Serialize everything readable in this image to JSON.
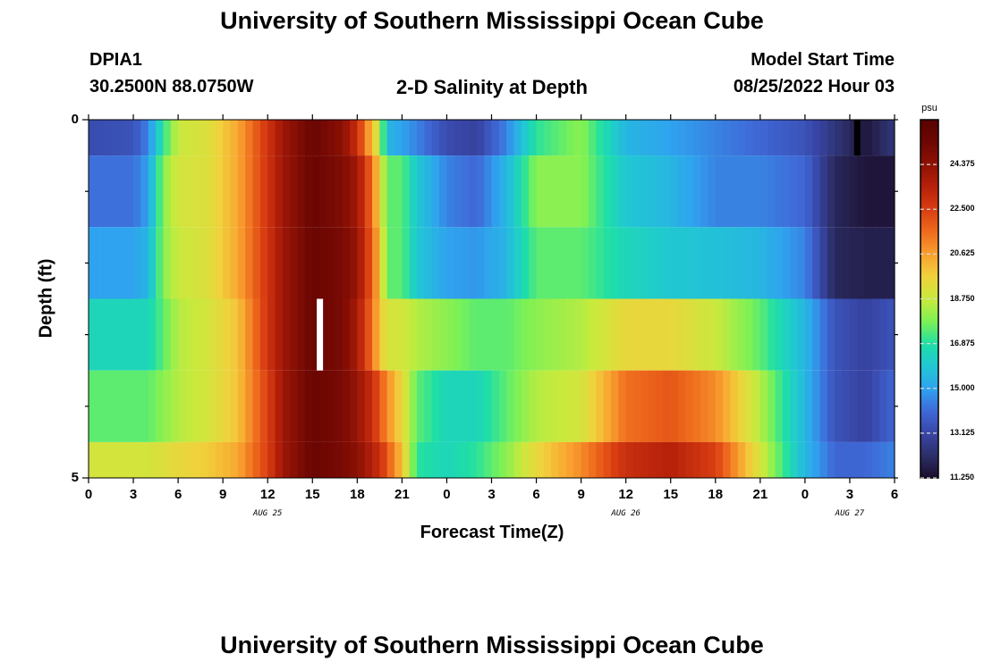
{
  "header": {
    "title": "University of Southern Mississippi Ocean Cube",
    "station": "DPIA1",
    "coords": "30.2500N  88.0750W",
    "plot_title": "2-D Salinity at Depth",
    "model_label": "Model Start Time",
    "model_time": "08/25/2022 Hour 03"
  },
  "footer": {
    "title": "University of Southern Mississippi Ocean Cube"
  },
  "chart_data": {
    "type": "heatmap",
    "xlabel": "Forecast Time(Z)",
    "ylabel": "Depth (ft)",
    "x_tick_labels": [
      "0",
      "3",
      "6",
      "9",
      "12",
      "15",
      "18",
      "21",
      "0",
      "3",
      "6",
      "9",
      "12",
      "15",
      "18",
      "21",
      "0",
      "3",
      "6"
    ],
    "date_labels": [
      {
        "label": "AUG 25",
        "hour": 12
      },
      {
        "label": "AUG 26",
        "hour": 36
      },
      {
        "label": "AUG 27",
        "hour": 51
      }
    ],
    "x_range_hours": [
      0,
      54
    ],
    "y_tick_labels": [
      "0",
      "5"
    ],
    "y_range": [
      0,
      5
    ],
    "depth_bands": [
      {
        "depth_start": 0.0,
        "depth_end": 0.5
      },
      {
        "depth_start": 0.5,
        "depth_end": 1.5
      },
      {
        "depth_start": 1.5,
        "depth_end": 2.5
      },
      {
        "depth_start": 2.5,
        "depth_end": 3.5
      },
      {
        "depth_start": 3.5,
        "depth_end": 4.5
      },
      {
        "depth_start": 4.5,
        "depth_end": 5.0
      }
    ],
    "keyframe_hours": [
      0,
      3,
      4,
      5,
      6,
      8,
      10,
      12,
      13,
      15,
      17,
      18,
      19,
      19.5,
      20,
      21,
      22,
      24,
      26,
      28,
      30,
      33,
      36,
      39,
      42,
      45,
      48,
      50,
      52,
      54
    ],
    "values": [
      [
        13.3,
        13.5,
        14.5,
        17.0,
        18.8,
        19.2,
        20.5,
        22.8,
        24.0,
        25.5,
        24.5,
        23.0,
        20.0,
        18.8,
        15.5,
        15.0,
        14.5,
        13.3,
        13.0,
        14.5,
        17.0,
        18.0,
        15.5,
        15.0,
        14.5,
        14.0,
        13.5,
        12.5,
        11.5,
        12.5
      ],
      [
        14.2,
        14.2,
        15.0,
        18.0,
        19.0,
        19.2,
        20.5,
        22.8,
        24.0,
        25.5,
        24.8,
        24.0,
        21.5,
        19.5,
        17.5,
        17.5,
        16.0,
        14.5,
        14.0,
        15.5,
        18.0,
        18.0,
        16.0,
        15.5,
        14.5,
        14.5,
        14.0,
        12.0,
        11.5,
        11.5
      ],
      [
        15.0,
        15.0,
        15.5,
        18.0,
        18.8,
        19.2,
        20.5,
        22.8,
        24.0,
        25.5,
        25.0,
        24.2,
        21.8,
        20.0,
        17.5,
        17.5,
        16.0,
        15.0,
        14.8,
        15.5,
        17.5,
        17.5,
        16.5,
        16.0,
        15.8,
        15.5,
        14.5,
        12.0,
        11.8,
        11.8
      ],
      [
        16.5,
        16.5,
        16.5,
        17.5,
        18.5,
        19.0,
        20.0,
        22.8,
        24.0,
        25.5,
        25.0,
        23.8,
        21.5,
        20.0,
        19.0,
        19.0,
        18.5,
        18.0,
        17.5,
        17.5,
        18.0,
        18.5,
        19.5,
        19.5,
        18.8,
        17.5,
        15.5,
        13.5,
        13.0,
        13.5
      ],
      [
        17.5,
        17.5,
        17.5,
        18.0,
        18.5,
        19.0,
        20.0,
        22.5,
        24.0,
        25.5,
        25.0,
        24.2,
        23.0,
        22.0,
        21.0,
        19.5,
        17.5,
        16.5,
        16.5,
        17.5,
        18.5,
        19.0,
        21.5,
        22.0,
        21.0,
        18.5,
        15.5,
        13.5,
        13.0,
        14.0
      ],
      [
        19.0,
        19.0,
        19.0,
        19.2,
        19.5,
        19.8,
        20.5,
        22.5,
        24.0,
        25.5,
        25.0,
        24.5,
        23.5,
        23.0,
        22.0,
        20.0,
        17.0,
        16.5,
        17.0,
        18.0,
        19.5,
        21.0,
        23.0,
        23.5,
        22.5,
        19.0,
        15.5,
        14.0,
        14.0,
        14.5
      ]
    ],
    "missing_markers": [
      {
        "hour": 15.5,
        "depth_start": 2.5,
        "depth_end": 3.5,
        "color": "#ffffff"
      },
      {
        "hour": 51.5,
        "depth_start": 0.0,
        "depth_end": 0.5,
        "color": "#000000"
      }
    ],
    "colorbar": {
      "unit": "psu",
      "min": 11.25,
      "max": 26.25,
      "tick_values": [
        11.25,
        13.125,
        15.0,
        16.875,
        18.75,
        20.625,
        22.5,
        24.375
      ],
      "tick_labels": [
        "11.250",
        "13.125",
        "15.000",
        "16.875",
        "18.750",
        "20.625",
        "22.500",
        "24.375"
      ],
      "color_stops": [
        {
          "value": 11.25,
          "color": "#1a0c2a"
        },
        {
          "value": 12.2,
          "color": "#2c2f68"
        },
        {
          "value": 13.125,
          "color": "#3845a5"
        },
        {
          "value": 14.1,
          "color": "#3f6ad8"
        },
        {
          "value": 15.0,
          "color": "#2fa3ef"
        },
        {
          "value": 16.0,
          "color": "#20c8d2"
        },
        {
          "value": 16.875,
          "color": "#1fdfa6"
        },
        {
          "value": 17.8,
          "color": "#7bf156"
        },
        {
          "value": 18.75,
          "color": "#c8ea3d"
        },
        {
          "value": 19.7,
          "color": "#f0d23c"
        },
        {
          "value": 20.625,
          "color": "#f9a12f"
        },
        {
          "value": 21.6,
          "color": "#ee6a1d"
        },
        {
          "value": 22.5,
          "color": "#d93e12"
        },
        {
          "value": 23.5,
          "color": "#b5200a"
        },
        {
          "value": 24.375,
          "color": "#8f1205"
        },
        {
          "value": 25.3,
          "color": "#6f0703"
        },
        {
          "value": 26.25,
          "color": "#5a0200"
        }
      ]
    }
  }
}
